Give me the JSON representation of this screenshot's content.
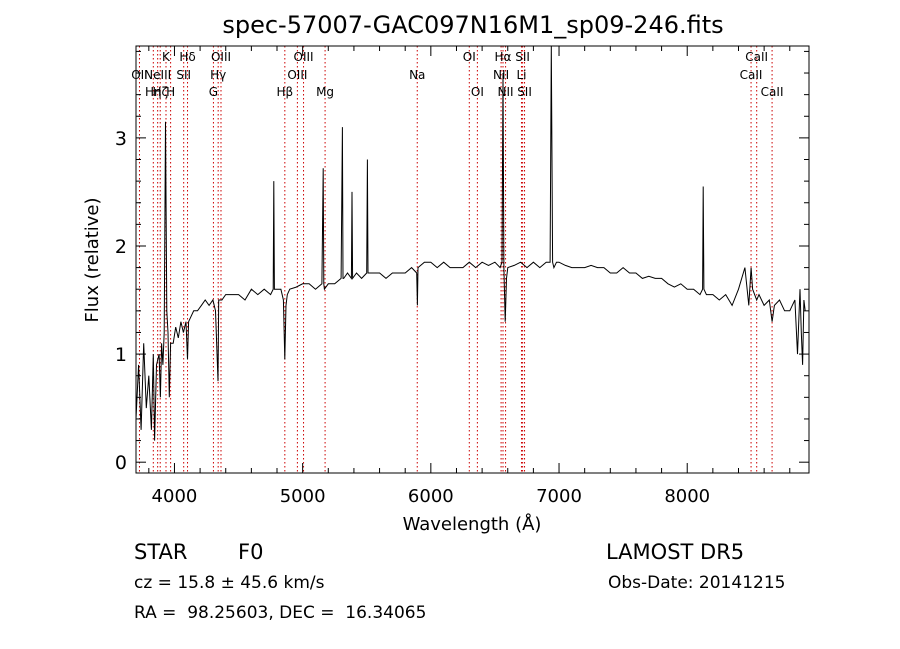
{
  "chart_data": {
    "type": "line",
    "title": "spec-57007-GAC097N16M1_sp09-246.fits",
    "xlabel": "Wavelength (Å)",
    "ylabel": "Flux (relative)",
    "xlim": [
      3700,
      8950
    ],
    "ylim": [
      -0.1,
      3.85
    ],
    "x_ticks": [
      4000,
      5000,
      6000,
      7000,
      8000
    ],
    "y_ticks": [
      0,
      1,
      2,
      3
    ],
    "grid": false,
    "series": [
      {
        "x": [
          3700,
          3720,
          3740,
          3760,
          3780,
          3800,
          3820,
          3835,
          3845,
          3860,
          3880,
          3890,
          3900,
          3910,
          3920,
          3930,
          3940,
          3950,
          3960,
          3970,
          3990,
          4010,
          4030,
          4050,
          4070,
          4090,
          4102,
          4110,
          4130,
          4150,
          4180,
          4210,
          4240,
          4270,
          4300,
          4320,
          4340,
          4345,
          4350,
          4370,
          4400,
          4450,
          4500,
          4550,
          4600,
          4650,
          4700,
          4750,
          4770,
          4775,
          4780,
          4800,
          4830,
          4850,
          4861,
          4870,
          4880,
          4900,
          4950,
          5000,
          5050,
          5100,
          5150,
          5160,
          5165,
          5170,
          5200,
          5250,
          5300,
          5310,
          5315,
          5320,
          5350,
          5380,
          5385,
          5390,
          5420,
          5460,
          5500,
          5505,
          5510,
          5550,
          5600,
          5650,
          5700,
          5750,
          5800,
          5850,
          5890,
          5895,
          5900,
          5950,
          6000,
          6050,
          6100,
          6150,
          6200,
          6250,
          6300,
          6350,
          6400,
          6450,
          6500,
          6540,
          6555,
          6563,
          6570,
          6580,
          6590,
          6600,
          6650,
          6700,
          6750,
          6800,
          6850,
          6900,
          6930,
          6940,
          6950,
          6960,
          6980,
          7000,
          7050,
          7100,
          7150,
          7200,
          7250,
          7300,
          7350,
          7400,
          7450,
          7500,
          7550,
          7600,
          7650,
          7700,
          7750,
          7800,
          7850,
          7900,
          7950,
          8000,
          8050,
          8100,
          8120,
          8125,
          8130,
          8150,
          8200,
          8250,
          8300,
          8350,
          8400,
          8450,
          8480,
          8498,
          8510,
          8542,
          8560,
          8600,
          8640,
          8662,
          8680,
          8720,
          8760,
          8800,
          8820,
          8840,
          8860,
          8880,
          8890,
          8900,
          8910,
          8920
        ],
        "y": [
          0.4,
          0.9,
          0.3,
          1.1,
          0.5,
          0.8,
          0.3,
          1.0,
          0.2,
          0.9,
          1.0,
          0.6,
          1.1,
          0.9,
          1.2,
          3.15,
          1.4,
          1.2,
          0.6,
          1.1,
          1.1,
          1.25,
          1.15,
          1.3,
          1.2,
          1.3,
          0.95,
          1.3,
          1.35,
          1.4,
          1.4,
          1.45,
          1.5,
          1.45,
          1.5,
          1.4,
          0.75,
          1.5,
          1.5,
          1.5,
          1.55,
          1.55,
          1.55,
          1.5,
          1.6,
          1.55,
          1.6,
          1.55,
          1.6,
          2.6,
          1.6,
          1.6,
          1.6,
          1.5,
          0.95,
          1.45,
          1.55,
          1.6,
          1.62,
          1.65,
          1.65,
          1.6,
          1.65,
          2.72,
          1.65,
          1.6,
          1.65,
          1.65,
          1.7,
          3.1,
          1.7,
          1.7,
          1.75,
          1.7,
          2.5,
          1.7,
          1.75,
          1.7,
          1.75,
          2.8,
          1.75,
          1.75,
          1.75,
          1.7,
          1.75,
          1.75,
          1.75,
          1.8,
          1.75,
          1.45,
          1.8,
          1.85,
          1.85,
          1.8,
          1.85,
          1.8,
          1.8,
          1.8,
          1.85,
          1.8,
          1.85,
          1.82,
          1.85,
          1.8,
          1.85,
          3.6,
          1.8,
          1.3,
          1.7,
          1.8,
          1.82,
          1.85,
          1.8,
          1.85,
          1.8,
          1.85,
          1.85,
          3.85,
          1.85,
          1.8,
          1.85,
          1.85,
          1.82,
          1.8,
          1.8,
          1.8,
          1.82,
          1.8,
          1.8,
          1.75,
          1.75,
          1.8,
          1.75,
          1.75,
          1.7,
          1.72,
          1.7,
          1.7,
          1.65,
          1.62,
          1.65,
          1.6,
          1.6,
          1.55,
          1.6,
          2.55,
          1.6,
          1.55,
          1.55,
          1.5,
          1.55,
          1.45,
          1.6,
          1.8,
          1.45,
          1.8,
          1.6,
          1.5,
          1.55,
          1.45,
          1.5,
          1.3,
          1.45,
          1.5,
          1.4,
          1.4,
          1.45,
          1.5,
          1.0,
          1.6,
          1.2,
          0.9,
          1.5,
          1.4
        ]
      }
    ],
    "lines": [
      {
        "x": 3727,
        "label": "OII",
        "row": 1
      },
      {
        "x": 3835,
        "label": "Hη",
        "row": 2
      },
      {
        "x": 3869,
        "label": "NeIII",
        "row": 1
      },
      {
        "x": 3889,
        "label": "Hζ",
        "row": 2
      },
      {
        "x": 3934,
        "label": "K",
        "row": 0
      },
      {
        "x": 3970,
        "label": "H",
        "row": 2
      },
      {
        "x": 4072,
        "label": "SII",
        "row": 1
      },
      {
        "x": 4102,
        "label": "Hδ",
        "row": 0
      },
      {
        "x": 4304,
        "label": "G",
        "row": 2
      },
      {
        "x": 4341,
        "label": "Hγ",
        "row": 1
      },
      {
        "x": 4363,
        "label": "OIII",
        "row": 0
      },
      {
        "x": 4861,
        "label": "Hβ",
        "row": 2
      },
      {
        "x": 4959,
        "label": "OIII",
        "row": 1
      },
      {
        "x": 5007,
        "label": "OIII",
        "row": 0
      },
      {
        "x": 5175,
        "label": "Mg",
        "row": 2
      },
      {
        "x": 5894,
        "label": "Na",
        "row": 1
      },
      {
        "x": 6300,
        "label": "OI",
        "row": 0
      },
      {
        "x": 6363,
        "label": "OI",
        "row": 2
      },
      {
        "x": 6548,
        "label": "NII",
        "row": 1
      },
      {
        "x": 6563,
        "label": "Hα",
        "row": 0
      },
      {
        "x": 6583,
        "label": "NII",
        "row": 2
      },
      {
        "x": 6707,
        "label": "Li",
        "row": 1
      },
      {
        "x": 6716,
        "label": "SII",
        "row": 0
      },
      {
        "x": 6731,
        "label": "SII",
        "row": 2
      },
      {
        "x": 8498,
        "label": "CaII",
        "row": 1
      },
      {
        "x": 8542,
        "label": "CaII",
        "row": 0
      },
      {
        "x": 8662,
        "label": "CaII",
        "row": 2
      }
    ]
  },
  "info": {
    "class": "STAR",
    "subclass": "F0",
    "survey": "LAMOST DR5",
    "cz": "cz = 15.8 ± 45.6 km/s",
    "obs_date": "Obs-Date: 20141215",
    "coords": "RA =  98.25603, DEC =  16.34065"
  },
  "colors": {
    "line_marker": "#cc0000",
    "spectrum": "#000000"
  }
}
